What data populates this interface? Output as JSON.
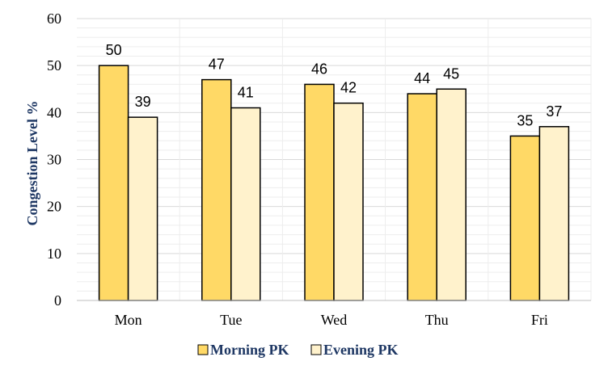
{
  "chart_data": {
    "type": "bar",
    "categories": [
      "Mon",
      "Tue",
      "Wed",
      "Thu",
      "Fri"
    ],
    "series": [
      {
        "name": "Morning PK",
        "values": [
          50,
          47,
          46,
          44,
          35
        ],
        "color": "#FFD966"
      },
      {
        "name": "Evening PK",
        "values": [
          39,
          41,
          42,
          45,
          37
        ],
        "color": "#FFF2CC"
      }
    ],
    "data_labels": {
      "Morning PK": [
        "50",
        "47",
        "46",
        "44",
        "35"
      ],
      "Evening PK": [
        "39",
        "41",
        "42",
        "45",
        "37"
      ]
    },
    "ylabel": "Congestion Level %",
    "xlabel": "",
    "ylim": [
      0,
      60
    ],
    "yticks": [
      "0",
      "10",
      "20",
      "30",
      "40",
      "50",
      "60"
    ],
    "grid": true,
    "legend_position": "bottom",
    "label_color": "#1F3864",
    "gridline_color": "#D9D9D9"
  }
}
